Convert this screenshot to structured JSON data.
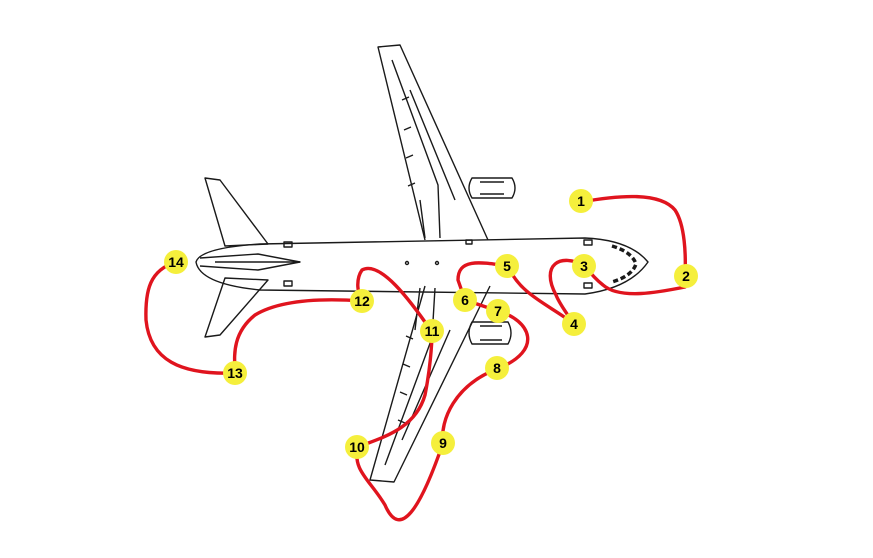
{
  "diagram": {
    "colors": {
      "route": "#e0141e",
      "marker_fill": "#f5ef3c",
      "marker_text": "#000000",
      "aircraft_line": "#1a1a1a",
      "background": "#ffffff"
    },
    "checkpoints": [
      {
        "label": "1"
      },
      {
        "label": "2"
      },
      {
        "label": "3"
      },
      {
        "label": "4"
      },
      {
        "label": "5"
      },
      {
        "label": "6"
      },
      {
        "label": "7"
      },
      {
        "label": "8"
      },
      {
        "label": "9"
      },
      {
        "label": "10"
      },
      {
        "label": "11"
      },
      {
        "label": "12"
      },
      {
        "label": "13"
      },
      {
        "label": "14"
      }
    ]
  }
}
